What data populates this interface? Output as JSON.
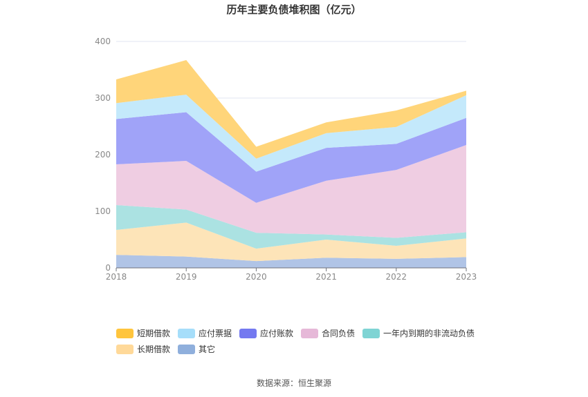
{
  "chart_data": {
    "type": "area",
    "stacked": true,
    "title": "历年主要负债堆积图（亿元）",
    "xlabel": "",
    "ylabel": "",
    "ylim": [
      0,
      400
    ],
    "yticks": [
      0,
      100,
      200,
      300,
      400
    ],
    "categories": [
      "2018",
      "2019",
      "2020",
      "2021",
      "2022",
      "2023"
    ],
    "grid": true,
    "legend_position": "bottom",
    "series": [
      {
        "name": "其它",
        "color": "#8fafdc",
        "fill": "#b0c4e6",
        "values": [
          23,
          20,
          12,
          18,
          16,
          19
        ]
      },
      {
        "name": "长期借款",
        "color": "#ffd999",
        "fill": "#fde4b8",
        "values": [
          44,
          60,
          22,
          32,
          23,
          33
        ]
      },
      {
        "name": "一年内到期的非流动负债",
        "color": "#7fd4d4",
        "fill": "#abe2e2",
        "values": [
          44,
          23,
          28,
          9,
          14,
          11
        ]
      },
      {
        "name": "合同负债",
        "color": "#e6b8d8",
        "fill": "#efcde2",
        "values": [
          72,
          86,
          53,
          95,
          120,
          154
        ]
      },
      {
        "name": "应付账款",
        "color": "#7479f0",
        "fill": "#a0a3f8",
        "values": [
          80,
          86,
          55,
          58,
          46,
          48
        ]
      },
      {
        "name": "应付票据",
        "color": "#a6defa",
        "fill": "#c4e9fb",
        "values": [
          28,
          31,
          23,
          26,
          30,
          40
        ]
      },
      {
        "name": "短期借款",
        "color": "#ffc53d",
        "fill": "#ffd57a",
        "values": [
          42,
          61,
          21,
          19,
          29,
          8
        ]
      }
    ],
    "legend_order": [
      "短期借款",
      "应付票据",
      "应付账款",
      "合同负债",
      "一年内到期的非流动负债",
      "长期借款",
      "其它"
    ],
    "source": "数据来源：恒生聚源"
  }
}
